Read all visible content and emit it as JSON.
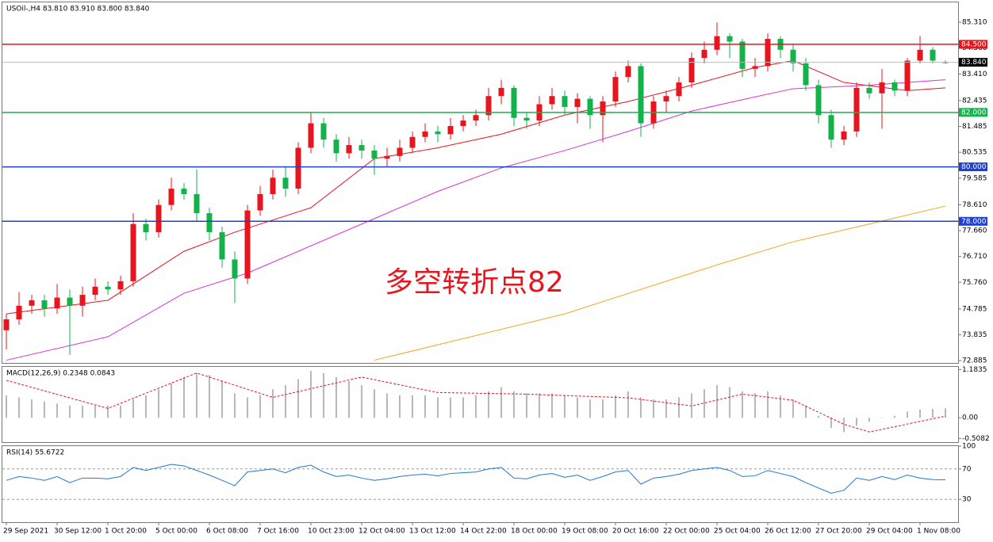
{
  "chart_data": [
    {
      "type": "candlestick",
      "title": "USOil-,H4  83.810 83.910 83.800 83.840",
      "annotation": "多空转折点82",
      "up_color": "#e8141e",
      "down_color": "#12b34a",
      "categories": [
        "29 Sep 2021",
        null,
        null,
        null,
        "30 Sep 12:00",
        null,
        null,
        null,
        "1 Oct 20:00",
        null,
        null,
        null,
        "5 Oct 00:00",
        null,
        null,
        null,
        "6 Oct 08:00",
        null,
        null,
        null,
        "7 Oct 16:00",
        null,
        null,
        null,
        "10 Oct 23:00",
        null,
        null,
        null,
        "12 Oct 04:00",
        null,
        null,
        null,
        "13 Oct 12:00",
        null,
        null,
        null,
        "14 Oct 22:00",
        null,
        null,
        null,
        "18 Oct 00:00",
        null,
        null,
        null,
        "19 Oct 08:00",
        null,
        null,
        null,
        "20 Oct 16:00",
        null,
        null,
        null,
        "22 Oct 00:00",
        null,
        null,
        null,
        "25 Oct 04:00",
        null,
        null,
        null,
        "26 Oct 12:00",
        null,
        null,
        null,
        "27 Oct 20:00",
        null,
        null,
        null,
        "29 Oct 04:00",
        null,
        null,
        null,
        "1 Nov 08:00",
        null,
        null
      ],
      "candles": [
        [
          74.0,
          74.6,
          73.3,
          74.4
        ],
        [
          74.4,
          75.4,
          74.2,
          74.9
        ],
        [
          74.9,
          75.3,
          74.6,
          75.1
        ],
        [
          75.1,
          75.3,
          74.5,
          74.8
        ],
        [
          74.8,
          75.7,
          74.6,
          75.2
        ],
        [
          75.2,
          75.5,
          73.1,
          74.9
        ],
        [
          74.9,
          75.6,
          74.5,
          75.3
        ],
        [
          75.3,
          75.9,
          75.1,
          75.6
        ],
        [
          75.6,
          75.8,
          75.3,
          75.5
        ],
        [
          75.5,
          76.0,
          75.3,
          75.8
        ],
        [
          75.8,
          78.3,
          75.6,
          77.9
        ],
        [
          77.9,
          78.1,
          77.3,
          77.6
        ],
        [
          77.6,
          78.8,
          77.4,
          78.6
        ],
        [
          78.6,
          79.6,
          78.4,
          79.2
        ],
        [
          79.2,
          79.4,
          78.8,
          79.0
        ],
        [
          79.0,
          79.9,
          78.0,
          78.3
        ],
        [
          78.3,
          78.5,
          77.3,
          77.6
        ],
        [
          77.6,
          77.8,
          76.3,
          76.6
        ],
        [
          76.6,
          76.9,
          75.0,
          75.9
        ],
        [
          75.9,
          78.6,
          75.7,
          78.4
        ],
        [
          78.4,
          79.3,
          78.2,
          79.0
        ],
        [
          79.0,
          79.9,
          78.8,
          79.6
        ],
        [
          79.6,
          80.0,
          78.9,
          79.2
        ],
        [
          79.2,
          80.9,
          79.0,
          80.7
        ],
        [
          80.7,
          82.0,
          80.5,
          81.6
        ],
        [
          81.6,
          81.8,
          80.7,
          81.0
        ],
        [
          81.0,
          81.2,
          80.2,
          80.5
        ],
        [
          80.5,
          81.1,
          80.3,
          80.8
        ],
        [
          80.8,
          81.0,
          80.3,
          80.6
        ],
        [
          80.6,
          80.8,
          79.7,
          80.3
        ],
        [
          80.3,
          80.7,
          80.0,
          80.4
        ],
        [
          80.4,
          81.0,
          80.2,
          80.7
        ],
        [
          80.7,
          81.3,
          80.5,
          81.1
        ],
        [
          81.1,
          81.6,
          80.9,
          81.3
        ],
        [
          81.3,
          81.5,
          80.9,
          81.2
        ],
        [
          81.2,
          81.8,
          81.0,
          81.5
        ],
        [
          81.5,
          81.9,
          81.3,
          81.7
        ],
        [
          81.7,
          82.1,
          81.5,
          81.9
        ],
        [
          81.9,
          82.9,
          81.7,
          82.6
        ],
        [
          82.6,
          83.2,
          82.3,
          82.9
        ],
        [
          82.9,
          83.0,
          81.5,
          81.8
        ],
        [
          81.8,
          82.0,
          81.4,
          81.7
        ],
        [
          81.7,
          82.6,
          81.5,
          82.3
        ],
        [
          82.3,
          82.9,
          82.1,
          82.6
        ],
        [
          82.6,
          82.8,
          81.9,
          82.2
        ],
        [
          82.2,
          82.7,
          81.6,
          82.5
        ],
        [
          82.5,
          82.6,
          81.4,
          81.9
        ],
        [
          81.9,
          82.6,
          80.9,
          82.4
        ],
        [
          82.4,
          83.5,
          82.2,
          83.3
        ],
        [
          83.3,
          83.9,
          83.1,
          83.7
        ],
        [
          83.7,
          83.8,
          81.1,
          81.6
        ],
        [
          81.6,
          82.6,
          81.4,
          82.4
        ],
        [
          82.4,
          82.8,
          82.0,
          82.6
        ],
        [
          82.6,
          83.3,
          82.4,
          83.1
        ],
        [
          83.1,
          84.2,
          82.9,
          84.0
        ],
        [
          84.0,
          84.6,
          83.8,
          84.3
        ],
        [
          84.3,
          85.3,
          84.1,
          84.8
        ],
        [
          84.8,
          84.9,
          84.0,
          84.6
        ],
        [
          84.6,
          84.7,
          83.3,
          83.6
        ],
        [
          83.6,
          84.0,
          83.3,
          83.7
        ],
        [
          83.7,
          84.9,
          83.5,
          84.7
        ],
        [
          84.7,
          84.8,
          84.0,
          84.3
        ],
        [
          84.3,
          84.5,
          83.5,
          83.8
        ],
        [
          83.8,
          84.0,
          82.8,
          83.0
        ],
        [
          83.0,
          83.2,
          81.6,
          81.9
        ],
        [
          81.9,
          82.1,
          80.7,
          81.0
        ],
        [
          81.0,
          81.5,
          80.8,
          81.3
        ],
        [
          81.3,
          83.1,
          81.1,
          82.9
        ],
        [
          82.9,
          83.1,
          82.5,
          82.7
        ],
        [
          82.7,
          83.6,
          81.4,
          83.1
        ],
        [
          83.1,
          83.2,
          82.6,
          82.8
        ],
        [
          82.8,
          84.0,
          82.6,
          83.9
        ],
        [
          83.9,
          84.8,
          83.8,
          84.3
        ],
        [
          84.3,
          84.4,
          83.8,
          83.9
        ],
        [
          83.81,
          83.91,
          83.8,
          83.84
        ]
      ],
      "overlays": [
        {
          "color": "#e8141e",
          "x": [
            0,
            8,
            14,
            18,
            24,
            29,
            34,
            39,
            44,
            49,
            54,
            59,
            62,
            66,
            71,
            74
          ],
          "values": [
            74.6,
            75.1,
            76.9,
            77.6,
            78.5,
            80.3,
            80.7,
            81.2,
            81.9,
            82.4,
            83.0,
            83.65,
            83.9,
            83.1,
            82.8,
            82.9
          ]
        },
        {
          "color": "#d633d6",
          "x": [
            0,
            8,
            14,
            19,
            29,
            34,
            39,
            44,
            49,
            54,
            59,
            62,
            68,
            74
          ],
          "values": [
            72.9,
            73.76,
            75.36,
            76.1,
            78.1,
            79.1,
            79.96,
            80.6,
            81.3,
            82.05,
            82.57,
            82.87,
            83.0,
            83.2
          ]
        },
        {
          "color": "#f5a623",
          "x": [
            29,
            44,
            56,
            62,
            68,
            74
          ],
          "values": [
            72.9,
            74.6,
            76.4,
            77.25,
            77.9,
            78.56
          ]
        }
      ],
      "price_lines": [
        {
          "value": 84.5,
          "label": "84.500",
          "color": "#e8141e"
        },
        {
          "value": 83.84,
          "label": "83.840",
          "color": "#bbbbbb"
        },
        {
          "value": 82.0,
          "label": "82.000",
          "color": "#12b34a"
        },
        {
          "value": 80.0,
          "label": "80.000",
          "color": "#2040d0"
        },
        {
          "value": 78.0,
          "label": "78.000",
          "color": "#2040d0"
        }
      ],
      "ylim": [
        72.8,
        86.04
      ],
      "yticks": [
        {
          "value": 85.31,
          "label": "85.310"
        },
        {
          "value": 84.36,
          "label": "84.360"
        },
        {
          "value": 83.41,
          "label": "83.410"
        },
        {
          "value": 82.435,
          "label": "82.435"
        },
        {
          "value": 81.485,
          "label": "81.485"
        },
        {
          "value": 80.535,
          "label": "80.535"
        },
        {
          "value": 79.585,
          "label": "79.585"
        },
        {
          "value": 78.61,
          "label": "78.610"
        },
        {
          "value": 77.66,
          "label": "77.660"
        },
        {
          "value": 76.71,
          "label": "76.710"
        },
        {
          "value": 75.76,
          "label": "75.760"
        },
        {
          "value": 74.785,
          "label": "74.785"
        },
        {
          "value": 73.835,
          "label": "73.835"
        },
        {
          "value": 72.885,
          "label": "72.885"
        }
      ],
      "grid": false
    },
    {
      "type": "macd",
      "title": "MACD(12,26,9) 0.2348 0.0843",
      "series": [
        {
          "color": "#b8b8b8",
          "values": [
            0.55,
            0.5,
            0.45,
            0.4,
            0.35,
            0.3,
            0.3,
            0.3,
            0.3,
            0.3,
            0.45,
            0.55,
            0.7,
            0.85,
            1.0,
            1.1,
            1.05,
            0.9,
            0.6,
            0.5,
            0.55,
            0.7,
            0.8,
            0.95,
            1.15,
            1.1,
            1.0,
            0.9,
            0.8,
            0.7,
            0.6,
            0.55,
            0.55,
            0.55,
            0.5,
            0.5,
            0.5,
            0.55,
            0.65,
            0.75,
            0.65,
            0.6,
            0.6,
            0.6,
            0.55,
            0.5,
            0.45,
            0.45,
            0.55,
            0.65,
            0.5,
            0.45,
            0.45,
            0.5,
            0.6,
            0.7,
            0.8,
            0.75,
            0.65,
            0.6,
            0.65,
            0.55,
            0.45,
            0.3,
            0.05,
            -0.25,
            -0.35,
            -0.2,
            -0.1,
            0.0,
            0.05,
            0.15,
            0.2,
            0.22,
            0.23
          ]
        },
        {
          "color": "#e8141e",
          "x": [
            0,
            8,
            15,
            21,
            28,
            34,
            41,
            49,
            54,
            58,
            62,
            66,
            68,
            74
          ],
          "values": [
            0.92,
            0.23,
            1.1,
            0.5,
            1.0,
            0.62,
            0.58,
            0.49,
            0.29,
            0.58,
            0.43,
            -0.16,
            -0.35,
            0.04
          ]
        }
      ],
      "ylim": [
        -0.6,
        1.25
      ],
      "yticks": [
        {
          "value": 1.1835,
          "label": "1.1835"
        },
        {
          "value": 0,
          "label": "0.00"
        },
        {
          "value": -0.5082,
          "label": "-0.5082"
        }
      ],
      "grid": false
    },
    {
      "type": "line",
      "title": "RSI(14) 55.6722",
      "color": "#1e78d0",
      "values": [
        55,
        60,
        58,
        55,
        60,
        52,
        58,
        58,
        57,
        60,
        72,
        68,
        72,
        76,
        74,
        68,
        62,
        55,
        48,
        66,
        68,
        70,
        65,
        72,
        75,
        66,
        60,
        62,
        58,
        55,
        57,
        60,
        62,
        63,
        61,
        64,
        65,
        66,
        70,
        72,
        58,
        57,
        62,
        64,
        59,
        62,
        55,
        60,
        66,
        68,
        50,
        58,
        60,
        63,
        68,
        70,
        72,
        68,
        60,
        61,
        68,
        64,
        60,
        52,
        45,
        38,
        42,
        58,
        55,
        60,
        56,
        62,
        58,
        56,
        55.67
      ],
      "ylim": [
        0,
        100
      ],
      "yticks": [
        100,
        70,
        30
      ],
      "grid": true
    }
  ]
}
